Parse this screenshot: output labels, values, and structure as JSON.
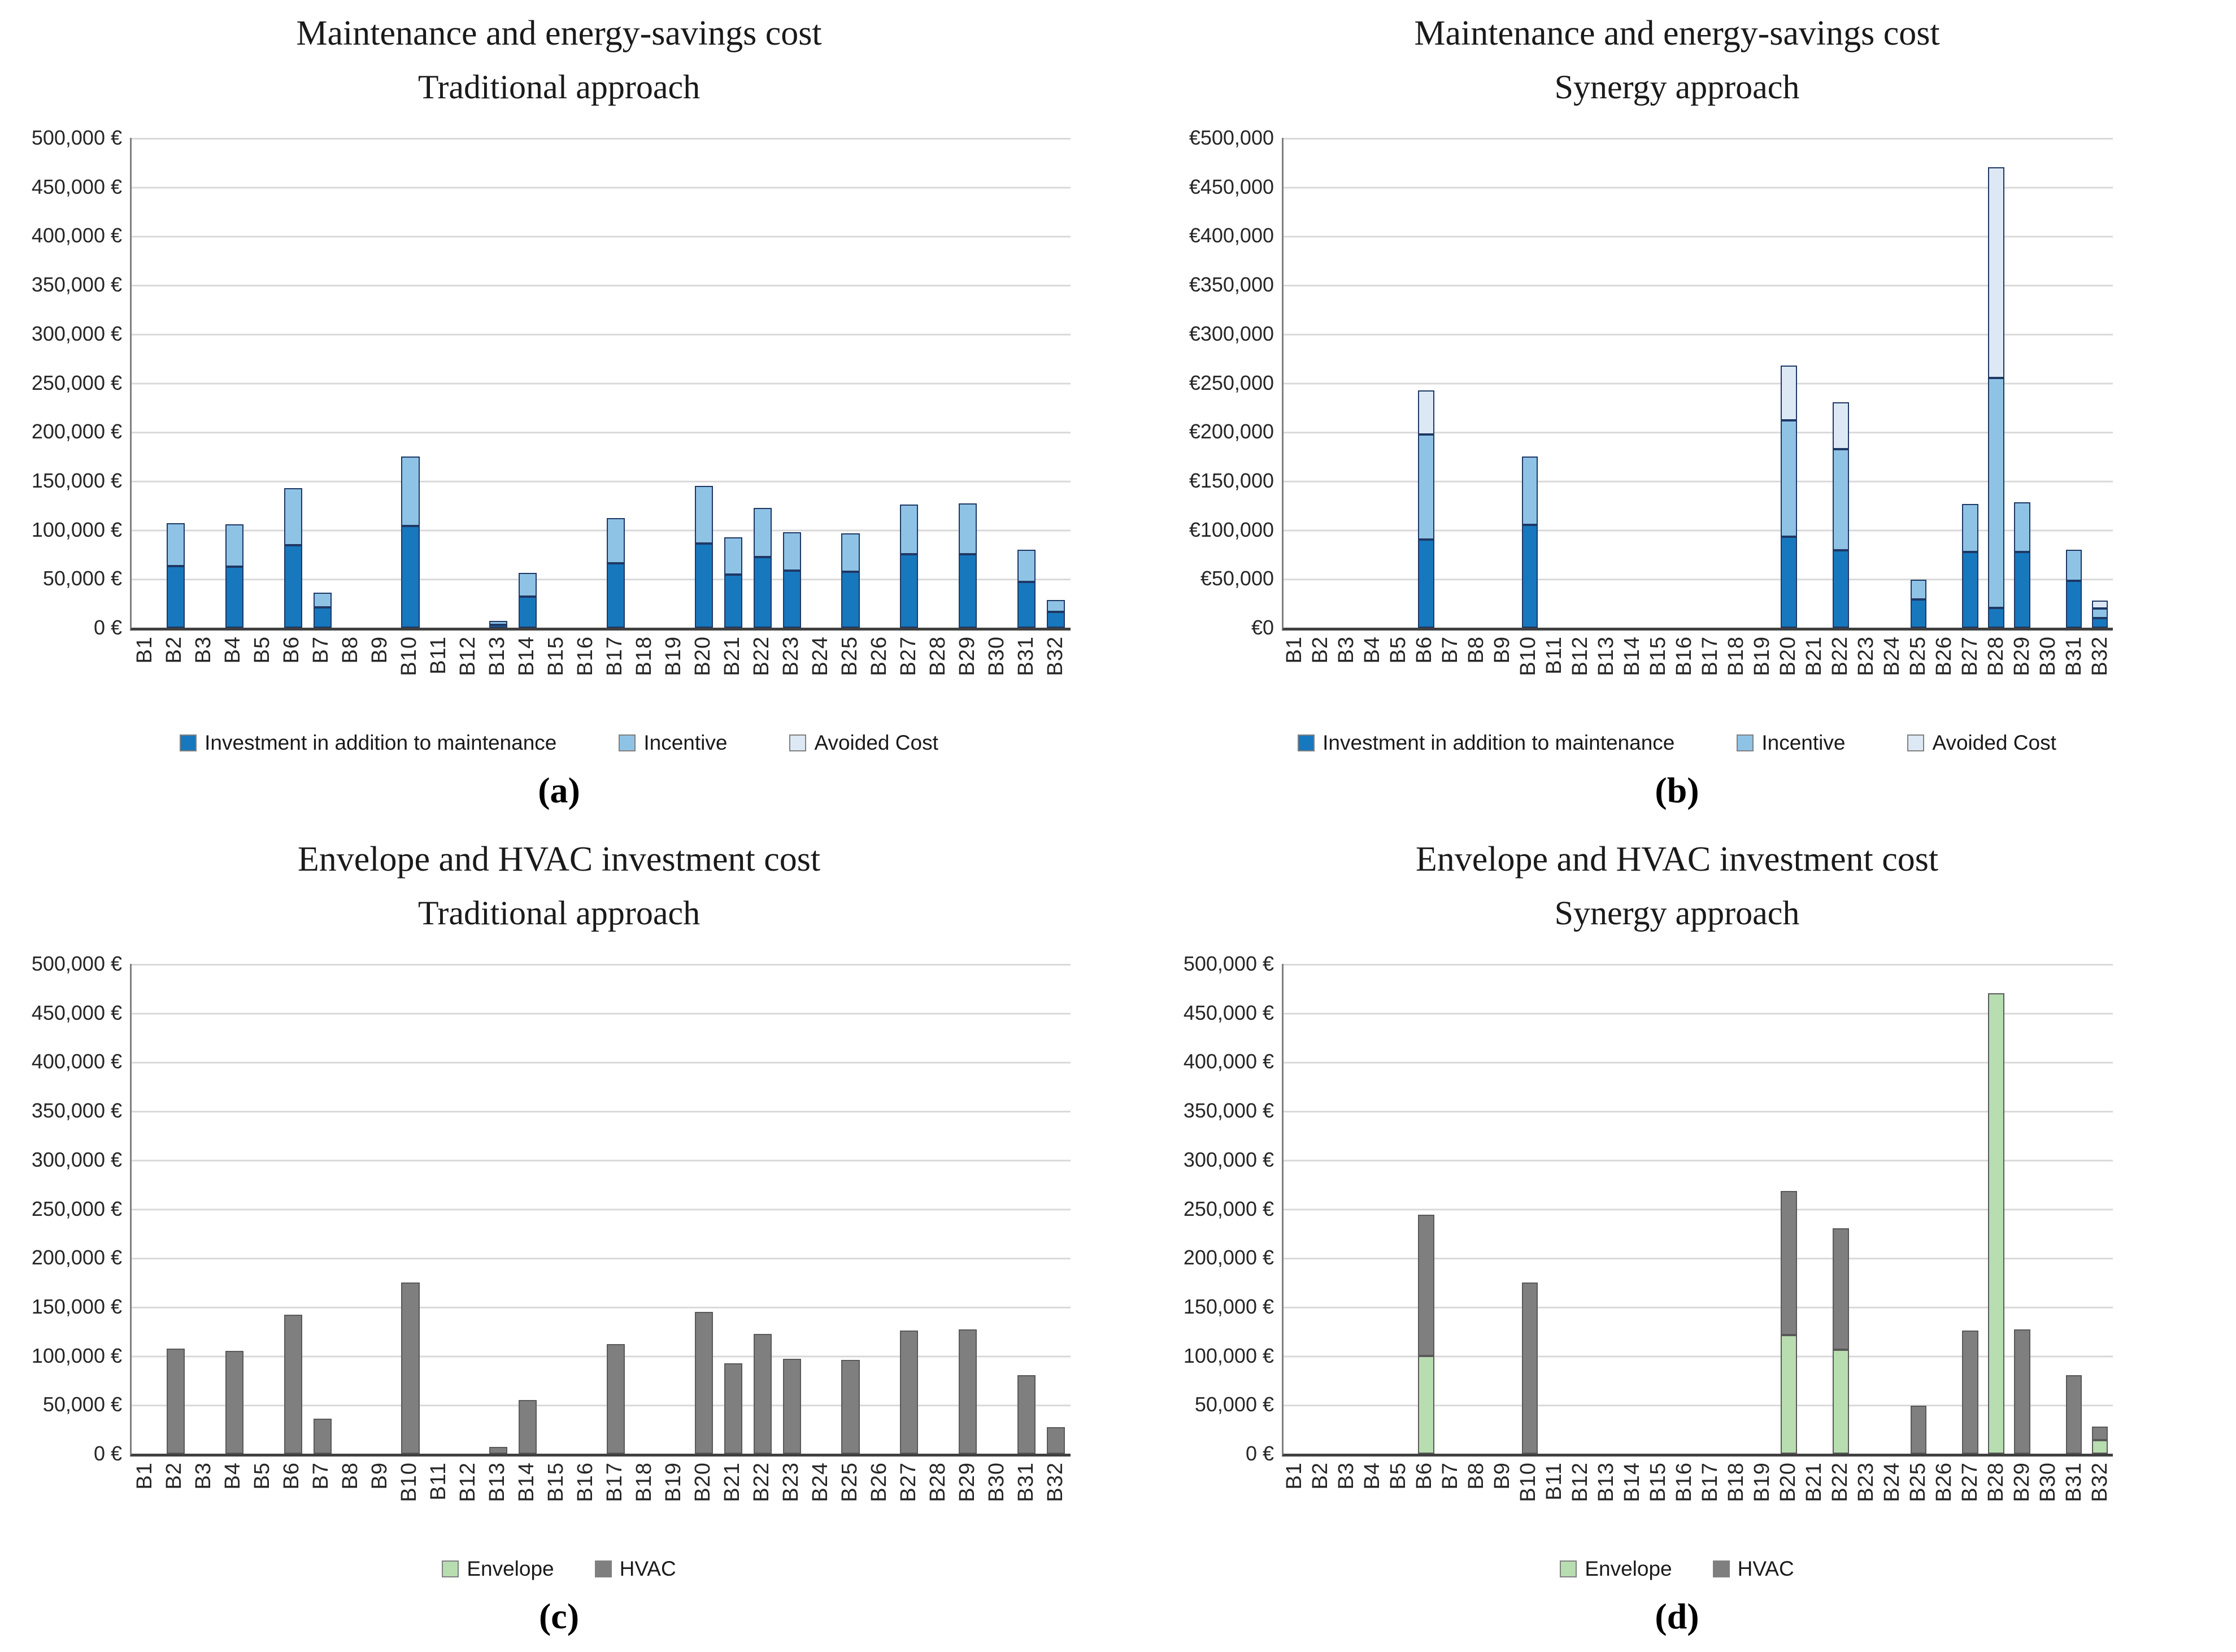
{
  "panels": [
    {
      "caption": "(a)"
    },
    {
      "caption": "(b)"
    },
    {
      "caption": "(c)"
    },
    {
      "caption": "(d)"
    }
  ],
  "chart_data": [
    {
      "type": "stacked-bar",
      "title": "Maintenance and energy-savings cost",
      "subtitle": "Traditional approach",
      "ylim": [
        0,
        500000
      ],
      "grid": true,
      "legend_position": "bottom",
      "yticks": [
        "500,000 €",
        "450,000 €",
        "400,000 €",
        "350,000 €",
        "300,000 €",
        "250,000 €",
        "200,000 €",
        "150,000 €",
        "100,000 €",
        "50,000 €",
        "0 €"
      ],
      "categories": [
        "B1",
        "B2",
        "B3",
        "B4",
        "B5",
        "B6",
        "B7",
        "B8",
        "B9",
        "B10",
        "B11",
        "B12",
        "B13",
        "B14",
        "B15",
        "B16",
        "B17",
        "B18",
        "B19",
        "B20",
        "B21",
        "B22",
        "B23",
        "B24",
        "B25",
        "B26",
        "B27",
        "B28",
        "B29",
        "B30",
        "B31",
        "B32"
      ],
      "bar_border": "#1f3864",
      "series": [
        {
          "name": "Investment in addition to maintenance",
          "color": "#1878BE",
          "values": [
            0,
            63000,
            0,
            62000,
            0,
            84000,
            21000,
            0,
            0,
            104000,
            0,
            0,
            3000,
            32000,
            0,
            0,
            66000,
            0,
            0,
            86000,
            54000,
            72000,
            58000,
            0,
            57000,
            0,
            75000,
            0,
            75000,
            0,
            47000,
            16000
          ]
        },
        {
          "name": "Incentive",
          "color": "#8FC3E6",
          "values": [
            0,
            44000,
            0,
            43000,
            0,
            58000,
            15000,
            0,
            0,
            71000,
            0,
            0,
            4000,
            24000,
            0,
            0,
            46000,
            0,
            0,
            59000,
            38000,
            50000,
            39000,
            0,
            39000,
            0,
            51000,
            0,
            52000,
            0,
            33000,
            12000
          ]
        },
        {
          "name": "Avoided Cost",
          "color": "#DCE9F5",
          "values": [
            0,
            0,
            0,
            0,
            0,
            0,
            0,
            0,
            0,
            0,
            0,
            0,
            0,
            0,
            0,
            0,
            0,
            0,
            0,
            0,
            0,
            0,
            0,
            0,
            0,
            0,
            0,
            0,
            0,
            0,
            0,
            0
          ]
        }
      ]
    },
    {
      "type": "stacked-bar",
      "title": "Maintenance and energy-savings cost",
      "subtitle": "Synergy approach",
      "ylim": [
        0,
        500000
      ],
      "grid": true,
      "legend_position": "bottom",
      "yticks": [
        "€500,000",
        "€450,000",
        "€400,000",
        "€350,000",
        "€300,000",
        "€250,000",
        "€200,000",
        "€150,000",
        "€100,000",
        "€50,000",
        "€0"
      ],
      "categories": [
        "B1",
        "B2",
        "B3",
        "B4",
        "B5",
        "B6",
        "B7",
        "B8",
        "B9",
        "B10",
        "B11",
        "B12",
        "B13",
        "B14",
        "B15",
        "B16",
        "B17",
        "B18",
        "B19",
        "B20",
        "B21",
        "B22",
        "B23",
        "B24",
        "B25",
        "B26",
        "B27",
        "B28",
        "B29",
        "B30",
        "B31",
        "B32"
      ],
      "bar_border": "#1f3864",
      "series": [
        {
          "name": "Investment in addition to maintenance",
          "color": "#1878BE",
          "values": [
            0,
            0,
            0,
            0,
            0,
            90000,
            0,
            0,
            0,
            105000,
            0,
            0,
            0,
            0,
            0,
            0,
            0,
            0,
            0,
            93000,
            0,
            79000,
            0,
            0,
            29000,
            0,
            77000,
            20000,
            77000,
            0,
            48000,
            10000
          ]
        },
        {
          "name": "Incentive",
          "color": "#8FC3E6",
          "values": [
            0,
            0,
            0,
            0,
            0,
            107000,
            0,
            0,
            0,
            70000,
            0,
            0,
            0,
            0,
            0,
            0,
            0,
            0,
            0,
            119000,
            0,
            103000,
            0,
            0,
            20000,
            0,
            49000,
            235000,
            51000,
            0,
            32000,
            10000
          ]
        },
        {
          "name": "Avoided Cost",
          "color": "#DCE9F5",
          "values": [
            0,
            0,
            0,
            0,
            0,
            45000,
            0,
            0,
            0,
            0,
            0,
            0,
            0,
            0,
            0,
            0,
            0,
            0,
            0,
            56000,
            0,
            48000,
            0,
            0,
            0,
            0,
            0,
            215000,
            0,
            0,
            0,
            8000
          ]
        }
      ]
    },
    {
      "type": "stacked-bar",
      "title": "Envelope and HVAC investment cost",
      "subtitle": "Traditional approach",
      "ylim": [
        0,
        500000
      ],
      "grid": true,
      "legend_position": "bottom",
      "yticks": [
        "500,000 €",
        "450,000 €",
        "400,000 €",
        "350,000 €",
        "300,000 €",
        "250,000 €",
        "200,000 €",
        "150,000 €",
        "100,000 €",
        "50,000 €",
        "0 €"
      ],
      "categories": [
        "B1",
        "B2",
        "B3",
        "B4",
        "B5",
        "B6",
        "B7",
        "B8",
        "B9",
        "B10",
        "B11",
        "B12",
        "B13",
        "B14",
        "B15",
        "B16",
        "B17",
        "B18",
        "B19",
        "B20",
        "B21",
        "B22",
        "B23",
        "B24",
        "B25",
        "B26",
        "B27",
        "B28",
        "B29",
        "B30",
        "B31",
        "B32"
      ],
      "bar_border": "#595959",
      "series": [
        {
          "name": "Envelope",
          "color": "#B7DDB0",
          "values": [
            0,
            0,
            0,
            0,
            0,
            0,
            0,
            0,
            0,
            0,
            0,
            0,
            0,
            0,
            0,
            0,
            0,
            0,
            0,
            0,
            0,
            0,
            0,
            0,
            0,
            0,
            0,
            0,
            0,
            0,
            0,
            0
          ]
        },
        {
          "name": "HVAC",
          "color": "#7F7F7F",
          "values": [
            0,
            107000,
            0,
            105000,
            0,
            142000,
            36000,
            0,
            0,
            175000,
            0,
            0,
            7000,
            55000,
            0,
            0,
            112000,
            0,
            0,
            145000,
            92000,
            122000,
            97000,
            0,
            96000,
            0,
            126000,
            0,
            127000,
            0,
            80000,
            27000
          ]
        }
      ]
    },
    {
      "type": "stacked-bar",
      "title": "Envelope and HVAC investment cost",
      "subtitle": "Synergy approach",
      "ylim": [
        0,
        500000
      ],
      "grid": true,
      "legend_position": "bottom",
      "yticks": [
        "500,000 €",
        "450,000 €",
        "400,000 €",
        "350,000 €",
        "300,000 €",
        "250,000 €",
        "200,000 €",
        "150,000 €",
        "100,000 €",
        "50,000 €",
        "0 €"
      ],
      "categories": [
        "B1",
        "B2",
        "B3",
        "B4",
        "B5",
        "B6",
        "B7",
        "B8",
        "B9",
        "B10",
        "B11",
        "B12",
        "B13",
        "B14",
        "B15",
        "B16",
        "B17",
        "B18",
        "B19",
        "B20",
        "B21",
        "B22",
        "B23",
        "B24",
        "B25",
        "B26",
        "B27",
        "B28",
        "B29",
        "B30",
        "B31",
        "B32"
      ],
      "bar_border": "#595959",
      "series": [
        {
          "name": "Envelope",
          "color": "#B7DDB0",
          "values": [
            0,
            0,
            0,
            0,
            0,
            100000,
            0,
            0,
            0,
            0,
            0,
            0,
            0,
            0,
            0,
            0,
            0,
            0,
            0,
            121000,
            0,
            106000,
            0,
            0,
            0,
            0,
            0,
            470000,
            0,
            0,
            0,
            14000
          ]
        },
        {
          "name": "HVAC",
          "color": "#7F7F7F",
          "values": [
            0,
            0,
            0,
            0,
            0,
            144000,
            0,
            0,
            0,
            175000,
            0,
            0,
            0,
            0,
            0,
            0,
            0,
            0,
            0,
            147000,
            0,
            124000,
            0,
            0,
            49000,
            0,
            126000,
            0,
            127000,
            0,
            80000,
            14000
          ]
        }
      ]
    }
  ]
}
